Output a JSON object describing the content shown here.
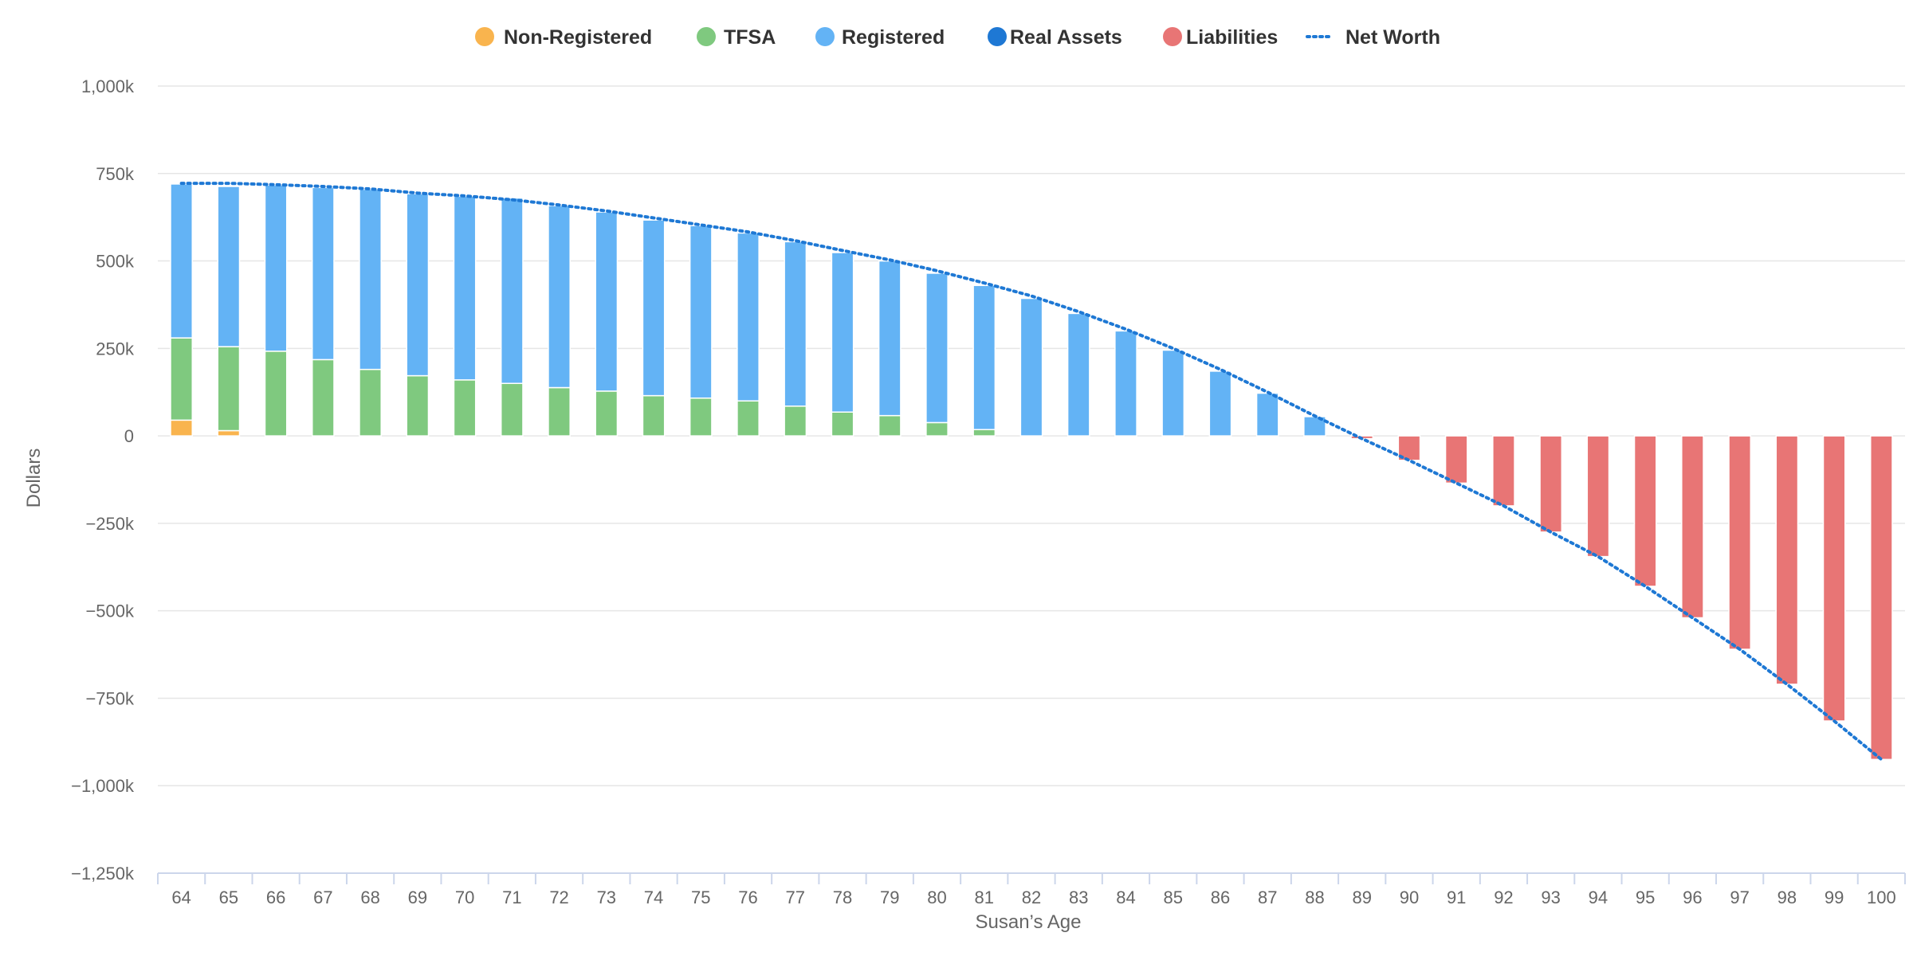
{
  "chart_data": {
    "type": "bar",
    "stacked": true,
    "xlabel": "Susan’s Age",
    "ylabel": "Dollars",
    "ylim": [
      -1250000,
      1000000
    ],
    "yticks": [
      {
        "value": 1000000,
        "label": "1,000k"
      },
      {
        "value": 750000,
        "label": "750k"
      },
      {
        "value": 500000,
        "label": "500k"
      },
      {
        "value": 250000,
        "label": "250k"
      },
      {
        "value": 0,
        "label": "0"
      },
      {
        "value": -250000,
        "label": "−250k"
      },
      {
        "value": -500000,
        "label": "−500k"
      },
      {
        "value": -750000,
        "label": "−750k"
      },
      {
        "value": -1000000,
        "label": "−1,000k"
      },
      {
        "value": -1250000,
        "label": "−1,250k"
      }
    ],
    "grid": true,
    "legend_position": "top-center",
    "categories": [
      "64",
      "65",
      "66",
      "67",
      "68",
      "69",
      "70",
      "71",
      "72",
      "73",
      "74",
      "75",
      "76",
      "77",
      "78",
      "79",
      "80",
      "81",
      "82",
      "83",
      "84",
      "85",
      "86",
      "87",
      "88",
      "89",
      "90",
      "91",
      "92",
      "93",
      "94",
      "95",
      "96",
      "97",
      "98",
      "99",
      "100"
    ],
    "series": [
      {
        "name": "Non-Registered",
        "color": "#f9b44e",
        "kind": "bar",
        "values": [
          45000,
          15000,
          0,
          0,
          0,
          0,
          0,
          0,
          0,
          0,
          0,
          0,
          0,
          0,
          0,
          0,
          0,
          0,
          0,
          0,
          0,
          0,
          0,
          0,
          0,
          0,
          0,
          0,
          0,
          0,
          0,
          0,
          0,
          0,
          0,
          0,
          0
        ]
      },
      {
        "name": "TFSA",
        "color": "#7fc97f",
        "kind": "bar",
        "values": [
          235000,
          240000,
          242000,
          218000,
          190000,
          172000,
          160000,
          150000,
          138000,
          128000,
          115000,
          108000,
          100000,
          85000,
          68000,
          58000,
          38000,
          18000,
          0,
          0,
          0,
          0,
          0,
          0,
          0,
          0,
          0,
          0,
          0,
          0,
          0,
          0,
          0,
          0,
          0,
          0,
          0
        ]
      },
      {
        "name": "Registered",
        "color": "#63b3f5",
        "kind": "bar",
        "values": [
          440000,
          458000,
          475000,
          492000,
          515000,
          520000,
          525000,
          530000,
          520000,
          512000,
          502000,
          493000,
          480000,
          470000,
          456000,
          442000,
          427000,
          412000,
          393000,
          350000,
          300000,
          245000,
          185000,
          122000,
          55000,
          0,
          0,
          0,
          0,
          0,
          0,
          0,
          0,
          0,
          0,
          0,
          0
        ]
      },
      {
        "name": "Real Assets",
        "color": "#1e78d4",
        "kind": "bar",
        "values": [
          0,
          0,
          0,
          0,
          0,
          0,
          0,
          0,
          0,
          0,
          0,
          0,
          0,
          0,
          0,
          0,
          0,
          0,
          0,
          0,
          0,
          0,
          0,
          0,
          0,
          0,
          0,
          0,
          0,
          0,
          0,
          0,
          0,
          0,
          0,
          0,
          0
        ]
      },
      {
        "name": "Liabilities",
        "color": "#e87575",
        "kind": "bar",
        "values": [
          0,
          0,
          0,
          0,
          0,
          0,
          0,
          0,
          0,
          0,
          0,
          0,
          0,
          0,
          0,
          0,
          0,
          0,
          0,
          0,
          0,
          0,
          0,
          0,
          0,
          -8000,
          -70000,
          -135000,
          -200000,
          -275000,
          -345000,
          -430000,
          -520000,
          -610000,
          -710000,
          -815000,
          -925000
        ]
      },
      {
        "name": "Net Worth",
        "color": "#1e78d4",
        "kind": "dotted-line",
        "values": [
          722000,
          722000,
          718000,
          713000,
          706000,
          694000,
          686000,
          675000,
          660000,
          643000,
          623000,
          603000,
          583000,
          558000,
          530000,
          503000,
          472000,
          437000,
          400000,
          355000,
          305000,
          250000,
          190000,
          125000,
          57000,
          -8000,
          -70000,
          -135000,
          -200000,
          -275000,
          -345000,
          -430000,
          -520000,
          -610000,
          -710000,
          -815000,
          -925000
        ]
      }
    ]
  }
}
